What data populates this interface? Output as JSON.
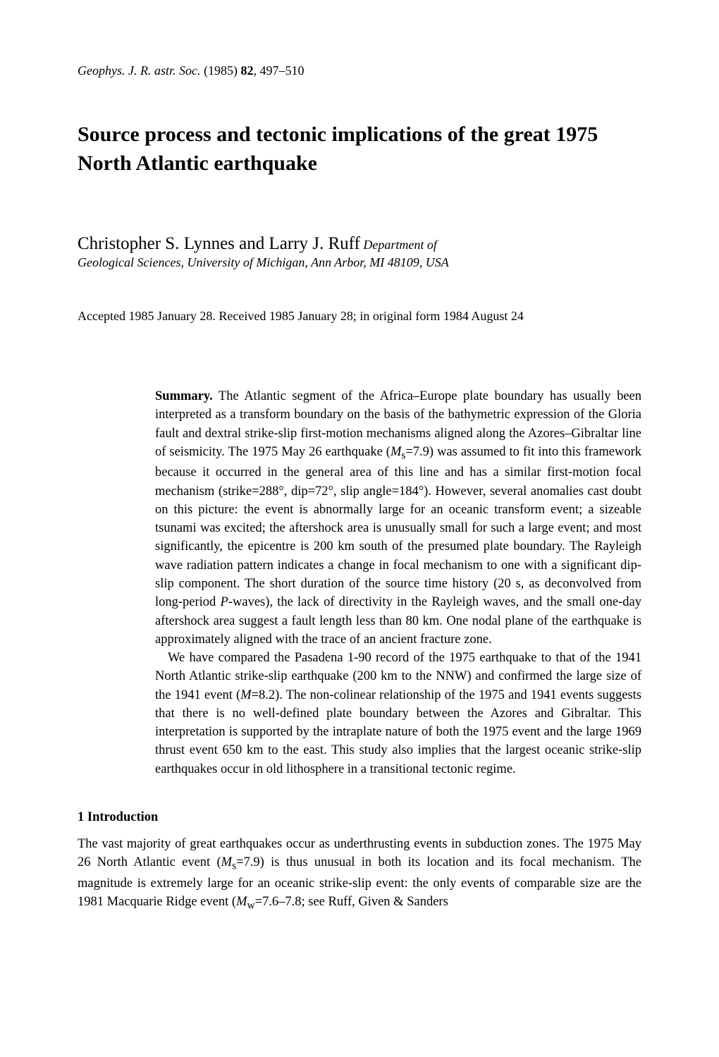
{
  "journal": {
    "name": "Geophys. J. R. astr. Soc.",
    "year": "(1985)",
    "volume": "82",
    "pages": ", 497–510"
  },
  "title": "Source process and tectonic implications of the great 1975 North Atlantic earthquake",
  "authors": "Christopher S. Lynnes and Larry J. Ruff",
  "author_dept": " Department of",
  "affiliation": "Geological Sciences, University of Michigan, Ann Arbor, MI 48109, USA",
  "accepted": "Accepted 1985 January 28. Received 1985 January 28; in original form 1984 August 24",
  "summary": {
    "label": "Summary.",
    "para1_a": " The Atlantic segment of the Africa–Europe plate boundary has usually been interpreted as a transform boundary on the basis of the bathymetric expression of the Gloria fault and dextral strike-slip first-motion mechanisms aligned along the Azores–Gibraltar line of seismicity. The 1975 May 26 earthquake (",
    "para1_ms": "M",
    "para1_sub": "s",
    "para1_b": "=7.9) was assumed to fit into this framework because it occurred in the general area of this line and has a similar first-motion focal mechanism (strike=288°, dip=72°, slip angle=184°). However, several anomalies cast doubt on this picture: the event is abnormally large for an oceanic transform event; a sizeable tsunami was excited; the aftershock area is unusually small for such a large event; and most significantly, the epicentre is 200 km south of the presumed plate boundary. The Rayleigh wave radiation pattern indicates a change in focal mechanism to one with a significant dip-slip component. The short duration of the source time history (20 s, as deconvolved from long-period ",
    "para1_p": "P",
    "para1_c": "-waves), the lack of directivity in the Rayleigh waves, and the small one-day aftershock area suggest a fault length less than 80 km. One nodal plane of the earthquake is approximately aligned with the trace of an ancient fracture zone.",
    "para2_a": "We have compared the Pasadena 1-90 record of the 1975 earthquake to that of the 1941 North Atlantic strike-slip earthquake (200 km to the NNW) and confirmed the large size of the 1941 event (",
    "para2_m": "M",
    "para2_b": "=8.2). The non-colinear relationship of the 1975 and 1941 events suggests that there is no well-defined plate boundary between the Azores and Gibraltar. This interpretation is supported by the intraplate nature of both the 1975 event and the large 1969 thrust event 650 km to the east. This study also implies that the largest oceanic strike-slip earthquakes occur in old lithosphere in a transitional tectonic regime."
  },
  "section1": {
    "heading": "1 Introduction",
    "para_a": "The vast majority of great earthquakes occur as underthrusting events in subduction zones. The 1975 May 26 North Atlantic event (",
    "para_ms": "M",
    "para_sub": "s",
    "para_b": "=7.9) is thus unusual in both its location and its focal mechanism. The magnitude is extremely large for an oceanic strike-slip event: the only events of comparable size are the 1981 Macquarie Ridge event (",
    "para_mw": "M",
    "para_wsub": "w",
    "para_c": "=7.6–7.8; see Ruff, Given & Sanders"
  }
}
